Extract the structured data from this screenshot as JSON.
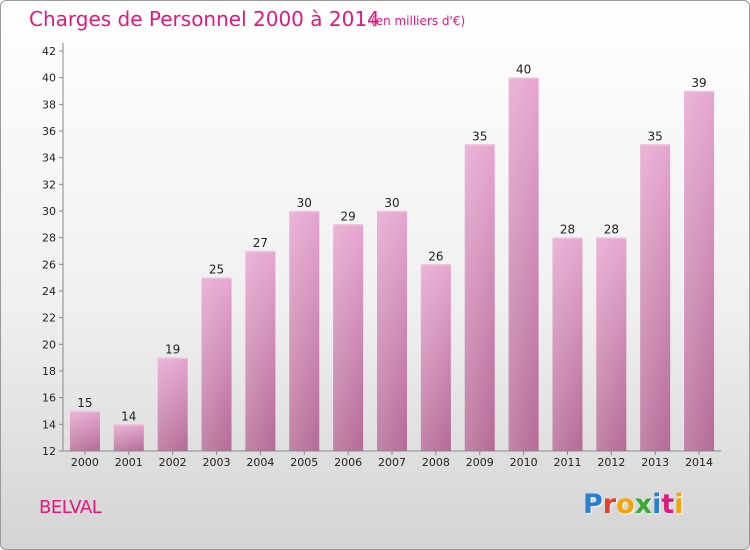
{
  "title": "Charges de Personnel 2000 à 2014",
  "subtitle": "(en milliers d'€)",
  "commune": "BELVAL",
  "logo": {
    "text": "Proxiti",
    "letters": [
      {
        "ch": "P",
        "color": "#2a7fd4"
      },
      {
        "ch": "r",
        "color": "#e8402a"
      },
      {
        "ch": "o",
        "color": "#f5a30b"
      },
      {
        "ch": "x",
        "color": "#3aa935"
      },
      {
        "ch": "i",
        "color": "#2a7fd4"
      },
      {
        "ch": "t",
        "color": "#e0197e"
      },
      {
        "ch": "i",
        "color": "#f5a30b"
      }
    ]
  },
  "colors": {
    "accent": "#e0197e",
    "bar_top": "#e6a6cf",
    "bar_bottom": "#b46a95"
  },
  "chart_data": {
    "type": "bar",
    "title": "Charges de Personnel 2000 à 2014",
    "subtitle": "(en milliers d'€)",
    "xlabel": "",
    "ylabel": "",
    "categories": [
      "2000",
      "2001",
      "2002",
      "2003",
      "2004",
      "2005",
      "2006",
      "2007",
      "2008",
      "2009",
      "2010",
      "2011",
      "2012",
      "2013",
      "2014"
    ],
    "values": [
      15,
      14,
      19,
      25,
      27,
      30,
      29,
      30,
      26,
      35,
      40,
      28,
      28,
      35,
      39
    ],
    "data_labels": [
      "15",
      "14",
      "19",
      "25",
      "27",
      "30",
      "29",
      "30",
      "26",
      "35",
      "40",
      "28",
      "28",
      "35",
      "39"
    ],
    "ylim": [
      12,
      42
    ],
    "yticks": [
      "12",
      "14",
      "16",
      "18",
      "20",
      "22",
      "24",
      "26",
      "28",
      "30",
      "32",
      "34",
      "36",
      "38",
      "40",
      "42"
    ],
    "grid": false,
    "legend": "none"
  }
}
